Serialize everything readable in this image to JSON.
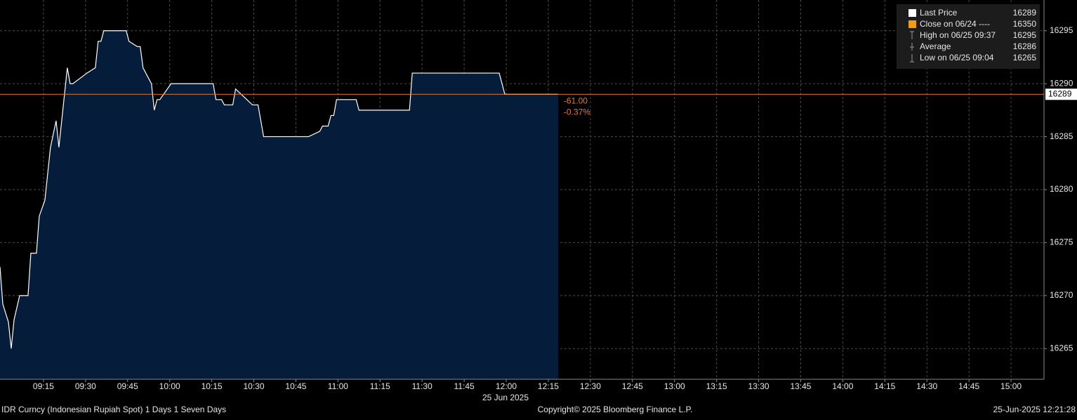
{
  "chart_data": {
    "type": "area",
    "series": [
      {
        "color": "#ffffff",
        "fill": "#051d3a",
        "x": [
          539.5,
          540.5,
          542.5,
          543.5,
          544.5,
          546.5,
          549.5,
          550.5,
          552.5,
          553.5,
          555.5,
          557.5,
          559.5,
          560.5,
          562.5,
          563.5,
          564.5,
          565.5,
          570.5,
          573.5,
          574.5,
          575.5,
          576.5,
          584.5,
          585.5,
          588.5,
          589.5,
          590.5,
          593.5,
          594.5,
          595.5,
          596.5,
          600.5,
          615.5,
          616.5,
          618.5,
          619.5,
          622.5,
          623.5,
          629.5,
          631.5,
          633.5,
          649.5,
          653.5,
          654.5,
          656.5,
          657.5,
          658.5,
          659.5,
          666.5,
          667.5,
          685.5,
          686.5,
          717.5,
          719.5,
          738.5
        ],
        "values": [
          16272.7,
          16269.2,
          16267.5,
          16265,
          16267.7,
          16270,
          16270,
          16274,
          16274,
          16277.5,
          16279,
          16284,
          16286.5,
          16284,
          16289,
          16291.5,
          16290,
          16290,
          16291,
          16291.5,
          16294,
          16294,
          16295,
          16295,
          16294,
          16293.5,
          16293.5,
          16291.5,
          16290,
          16287.5,
          16288.5,
          16288.5,
          16290,
          16290,
          16288.5,
          16288.5,
          16288,
          16288,
          16289.5,
          16288,
          16288,
          16285,
          16285,
          16285.5,
          16286,
          16286,
          16287,
          16287,
          16288.5,
          16288.5,
          16287.5,
          16287.5,
          16291,
          16291,
          16289,
          16289
        ]
      }
    ],
    "xlim": [
      539.5,
      911.75
    ],
    "ylim": [
      16262.1,
      16297.9
    ],
    "xticks": [
      {
        "value": 555,
        "label": "09:15"
      },
      {
        "value": 570,
        "label": "09:30"
      },
      {
        "value": 585,
        "label": "09:45"
      },
      {
        "value": 600,
        "label": "10:00"
      },
      {
        "value": 615,
        "label": "10:15"
      },
      {
        "value": 630,
        "label": "10:30"
      },
      {
        "value": 645,
        "label": "10:45"
      },
      {
        "value": 660,
        "label": "11:00"
      },
      {
        "value": 675,
        "label": "11:15"
      },
      {
        "value": 690,
        "label": "11:30"
      },
      {
        "value": 705,
        "label": "11:45"
      },
      {
        "value": 720,
        "label": "12:00"
      },
      {
        "value": 735,
        "label": "12:15"
      },
      {
        "value": 750,
        "label": "12:30"
      },
      {
        "value": 765,
        "label": "12:45"
      },
      {
        "value": 780,
        "label": "13:00"
      },
      {
        "value": 795,
        "label": "13:15"
      },
      {
        "value": 810,
        "label": "13:30"
      },
      {
        "value": 825,
        "label": "13:45"
      },
      {
        "value": 840,
        "label": "14:00"
      },
      {
        "value": 855,
        "label": "14:15"
      },
      {
        "value": 870,
        "label": "14:30"
      },
      {
        "value": 885,
        "label": "14:45"
      },
      {
        "value": 900,
        "label": "15:00"
      }
    ],
    "yticks": [
      16265,
      16270,
      16275,
      16280,
      16285,
      16290,
      16295
    ],
    "grid": true,
    "last_price": 16289,
    "last_price_color": "#e8772e",
    "annotations": [
      "-61.00",
      "-0.37%"
    ],
    "date_label": "25 Jun 2025",
    "legend": [
      {
        "label": "Last Price",
        "value": 16289,
        "color": "#ffffff"
      },
      {
        "label": "Close on 06/24 ----",
        "value": 16350,
        "color": "#f39c12"
      },
      {
        "label": "High on 06/25 09:37",
        "value": 16295
      },
      {
        "label": "Average",
        "value": 16286
      },
      {
        "label": "Low on 06/25 09:04",
        "value": 16265
      }
    ],
    "footer": {
      "left": "IDR Curncy (Indonesian Rupiah Spot) 1 Days 1 Seven Days",
      "center": "Copyright© 2025 Bloomberg Finance L.P.",
      "right": "25-Jun-2025 12:21:28"
    }
  }
}
